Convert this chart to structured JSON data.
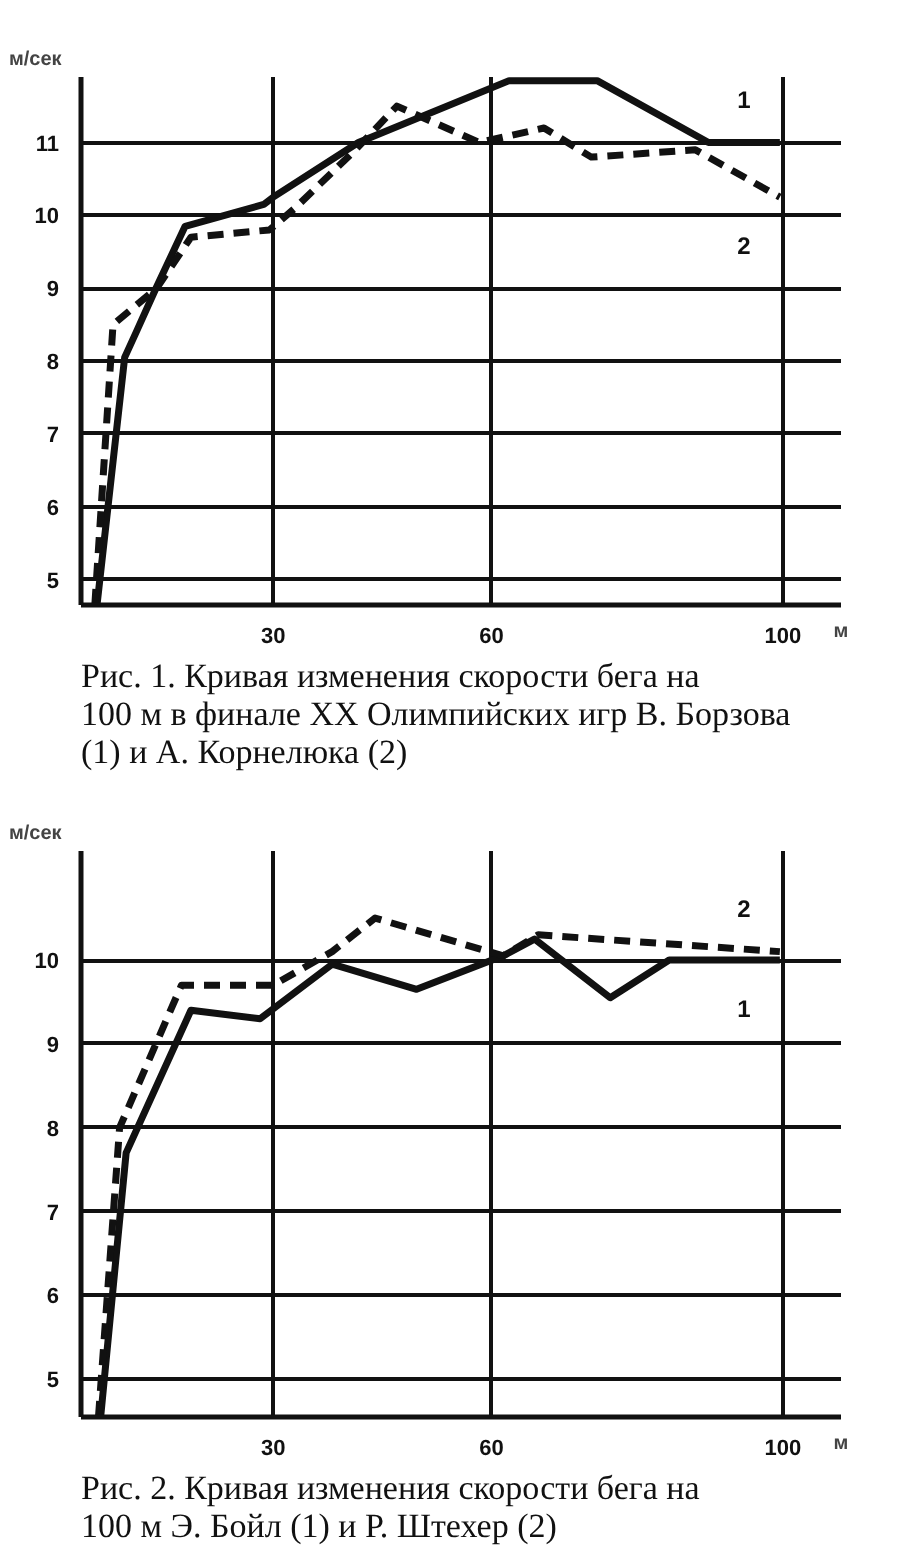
{
  "chart_data": [
    {
      "type": "line",
      "title": "Рис. 1. Кривая изменения скорости бега на 100 м в финале XX Олимпийских игр В. Борзова (1) и А. Корнелюка (2)",
      "xlabel": "м",
      "ylabel": "м/сек",
      "xlim": [
        3.6,
        108
      ],
      "ylim": [
        4.65,
        11.9
      ],
      "xticks": [
        30,
        60,
        100
      ],
      "yticks": [
        5,
        6,
        7,
        8,
        9,
        10,
        11
      ],
      "grid": true,
      "marker": "none",
      "series": [
        {
          "name": "1",
          "color": "#111111",
          "line_style": "solid",
          "x": [
            5.8,
            9.6,
            11.2,
            13.9,
            17.9,
            28.7,
            30,
            41.7,
            62.4,
            74.5,
            89.8,
            99.6
          ],
          "values": [
            4.65,
            8.05,
            8.4,
            9.0,
            9.85,
            10.15,
            10.25,
            11.0,
            11.85,
            11.85,
            11.0,
            11.0
          ]
        },
        {
          "name": "2",
          "color": "#111111",
          "line_style": "dashed",
          "x": [
            5.5,
            8,
            14,
            18.7,
            29.5,
            33,
            41.3,
            47,
            58.3,
            67.2,
            73.7,
            88,
            99.6
          ],
          "values": [
            4.65,
            8.5,
            9.0,
            9.7,
            9.8,
            10.1,
            10.9,
            11.5,
            11.0,
            11.2,
            10.8,
            10.9,
            10.25
          ]
        }
      ],
      "legend": false
    },
    {
      "type": "line",
      "title": "Рис. 2. Кривая изменения скорости бега на 100 м Э. Бойл (1) и Р. Штехер (2)",
      "xlabel": "м",
      "ylabel": "м/сек",
      "xlim": [
        3.6,
        108
      ],
      "ylim": [
        4.55,
        11.3
      ],
      "xticks": [
        30,
        60,
        100
      ],
      "yticks": [
        5,
        6,
        7,
        8,
        9,
        10
      ],
      "grid": true,
      "marker": "none",
      "series": [
        {
          "name": "1",
          "color": "#111111",
          "line_style": "solid",
          "x": [
            6.3,
            9.8,
            18.7,
            28.2,
            38.1,
            49.7,
            61.6,
            65.9,
            76.3,
            84.4,
            99.6
          ],
          "values": [
            4.55,
            7.7,
            9.4,
            9.3,
            9.95,
            9.65,
            10.05,
            10.25,
            9.55,
            10.0,
            10.0
          ]
        },
        {
          "name": "2",
          "color": "#111111",
          "line_style": "dashed",
          "x": [
            6,
            8.9,
            17.4,
            30,
            38.1,
            44,
            61.6,
            66.4,
            99.6
          ],
          "values": [
            4.55,
            8.0,
            9.7,
            9.7,
            10.1,
            10.5,
            10.05,
            10.3,
            10.1
          ]
        }
      ],
      "legend": false
    }
  ]
}
